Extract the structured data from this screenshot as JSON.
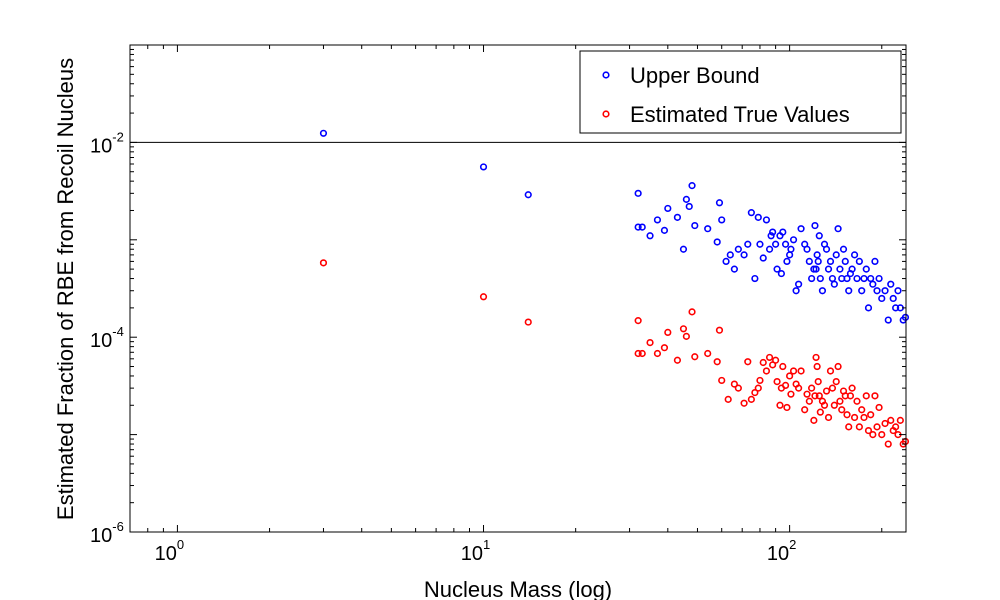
{
  "chart_data": {
    "type": "scatter",
    "x_scale": "log",
    "y_scale": "log",
    "xlim": [
      0.7,
      240
    ],
    "ylim": [
      1e-06,
      0.1
    ],
    "xlabel": "Nucleus Mass (log)",
    "ylabel": "Estimated Fraction of RBE from Recoil Nucleus",
    "x_ticks": [
      {
        "value": 1,
        "base": "10",
        "exp": "0"
      },
      {
        "value": 10,
        "base": "10",
        "exp": "1"
      },
      {
        "value": 100,
        "base": "10",
        "exp": "2"
      }
    ],
    "y_ticks": [
      {
        "value": 1e-06,
        "base": "10",
        "exp": "-6"
      },
      {
        "value": 0.0001,
        "base": "10",
        "exp": "-4"
      },
      {
        "value": 0.01,
        "base": "10",
        "exp": "-2"
      }
    ],
    "reference_line_y": 0.01,
    "legend_position": "top-right",
    "grid": false,
    "series": [
      {
        "name": "Upper Bound",
        "color": "#0000ff",
        "points": [
          [
            3,
            0.0124
          ],
          [
            10,
            0.0056
          ],
          [
            14,
            0.0029
          ],
          [
            32,
            0.003
          ],
          [
            32,
            0.00135
          ],
          [
            33,
            0.00135
          ],
          [
            35,
            0.0011
          ],
          [
            37,
            0.0016
          ],
          [
            39,
            0.00125
          ],
          [
            40,
            0.0021
          ],
          [
            43,
            0.0017
          ],
          [
            45,
            0.0008
          ],
          [
            46,
            0.0026
          ],
          [
            47,
            0.0022
          ],
          [
            48,
            0.0036
          ],
          [
            49,
            0.0014
          ],
          [
            54,
            0.0013
          ],
          [
            58,
            0.00095
          ],
          [
            59,
            0.0024
          ],
          [
            60,
            0.0016
          ],
          [
            62,
            0.0006
          ],
          [
            64,
            0.0007
          ],
          [
            66,
            0.0005
          ],
          [
            68,
            0.0008
          ],
          [
            71,
            0.0007
          ],
          [
            73,
            0.0009
          ],
          [
            75,
            0.0019
          ],
          [
            77,
            0.0004
          ],
          [
            79,
            0.0017
          ],
          [
            80,
            0.0009
          ],
          [
            82,
            0.00065
          ],
          [
            84,
            0.0016
          ],
          [
            86,
            0.0008
          ],
          [
            87,
            0.0011
          ],
          [
            88,
            0.0012
          ],
          [
            90,
            0.0009
          ],
          [
            91,
            0.0005
          ],
          [
            93,
            0.0011
          ],
          [
            94,
            0.00045
          ],
          [
            95,
            0.0012
          ],
          [
            97,
            0.0009
          ],
          [
            98,
            0.0006
          ],
          [
            100,
            0.0007
          ],
          [
            101,
            0.0008
          ],
          [
            103,
            0.001
          ],
          [
            105,
            0.0003
          ],
          [
            107,
            0.00035
          ],
          [
            109,
            0.0013
          ],
          [
            112,
            0.0009
          ],
          [
            114,
            0.0008
          ],
          [
            116,
            0.0006
          ],
          [
            118,
            0.0004
          ],
          [
            120,
            0.0005
          ],
          [
            121,
            0.0014
          ],
          [
            122,
            0.0005
          ],
          [
            123,
            0.0007
          ],
          [
            124,
            0.0006
          ],
          [
            125,
            0.0011
          ],
          [
            126,
            0.0004
          ],
          [
            128,
            0.0003
          ],
          [
            130,
            0.0009
          ],
          [
            132,
            0.0008
          ],
          [
            134,
            0.0005
          ],
          [
            136,
            0.0006
          ],
          [
            138,
            0.0004
          ],
          [
            140,
            0.00035
          ],
          [
            142,
            0.0007
          ],
          [
            144,
            0.0013
          ],
          [
            146,
            0.0005
          ],
          [
            148,
            0.0004
          ],
          [
            150,
            0.0008
          ],
          [
            152,
            0.0006
          ],
          [
            154,
            0.0004
          ],
          [
            156,
            0.0003
          ],
          [
            158,
            0.00045
          ],
          [
            160,
            0.0005
          ],
          [
            163,
            0.0007
          ],
          [
            166,
            0.0004
          ],
          [
            169,
            0.0006
          ],
          [
            172,
            0.0003
          ],
          [
            175,
            0.0004
          ],
          [
            178,
            0.0005
          ],
          [
            181,
            0.0002
          ],
          [
            184,
            0.0004
          ],
          [
            187,
            0.00035
          ],
          [
            190,
            0.0006
          ],
          [
            193,
            0.0003
          ],
          [
            196,
            0.0004
          ],
          [
            200,
            0.00025
          ],
          [
            205,
            0.0003
          ],
          [
            210,
            0.00015
          ],
          [
            214,
            0.00035
          ],
          [
            218,
            0.00025
          ],
          [
            222,
            0.0002
          ],
          [
            226,
            0.0003
          ],
          [
            230,
            0.0002
          ],
          [
            235,
            0.00015
          ],
          [
            239,
            0.00016
          ]
        ]
      },
      {
        "name": "Estimated True Values",
        "color": "#ff0000",
        "points": [
          [
            3,
            0.00058
          ],
          [
            10,
            0.00026
          ],
          [
            14,
            0.000143
          ],
          [
            32,
            0.000148
          ],
          [
            32,
            6.8e-05
          ],
          [
            33,
            6.8e-05
          ],
          [
            35,
            8.8e-05
          ],
          [
            37,
            6.8e-05
          ],
          [
            39,
            7.8e-05
          ],
          [
            40,
            0.000112
          ],
          [
            43,
            5.8e-05
          ],
          [
            45,
            0.000122
          ],
          [
            46,
            0.000102
          ],
          [
            48,
            0.000182
          ],
          [
            49,
            6.3e-05
          ],
          [
            54,
            6.8e-05
          ],
          [
            58,
            5.6e-05
          ],
          [
            59,
            0.000118
          ],
          [
            60,
            3.6e-05
          ],
          [
            63,
            2.3e-05
          ],
          [
            66,
            3.3e-05
          ],
          [
            68,
            3e-05
          ],
          [
            71,
            2.1e-05
          ],
          [
            73,
            5.6e-05
          ],
          [
            75,
            2.3e-05
          ],
          [
            77,
            2.7e-05
          ],
          [
            79,
            3e-05
          ],
          [
            80,
            3.6e-05
          ],
          [
            82,
            5.5e-05
          ],
          [
            84,
            4.5e-05
          ],
          [
            86,
            6.2e-05
          ],
          [
            88,
            5.2e-05
          ],
          [
            90,
            5.8e-05
          ],
          [
            91,
            3.5e-05
          ],
          [
            93,
            2e-05
          ],
          [
            94,
            3e-05
          ],
          [
            95,
            5e-05
          ],
          [
            97,
            3.2e-05
          ],
          [
            98,
            1.9e-05
          ],
          [
            100,
            4e-05
          ],
          [
            101,
            2.6e-05
          ],
          [
            103,
            4.5e-05
          ],
          [
            105,
            3.3e-05
          ],
          [
            107,
            3e-05
          ],
          [
            109,
            4.5e-05
          ],
          [
            112,
            1.8e-05
          ],
          [
            114,
            2.6e-05
          ],
          [
            116,
            2.2e-05
          ],
          [
            118,
            3e-05
          ],
          [
            120,
            1.4e-05
          ],
          [
            121,
            2.5e-05
          ],
          [
            122,
            6.2e-05
          ],
          [
            123,
            5e-05
          ],
          [
            124,
            3.5e-05
          ],
          [
            125,
            2.5e-05
          ],
          [
            126,
            1.7e-05
          ],
          [
            128,
            2.2e-05
          ],
          [
            130,
            2e-05
          ],
          [
            132,
            2.8e-05
          ],
          [
            134,
            1.5e-05
          ],
          [
            136,
            4.5e-05
          ],
          [
            138,
            3e-05
          ],
          [
            140,
            2e-05
          ],
          [
            142,
            3.5e-05
          ],
          [
            144,
            5e-05
          ],
          [
            146,
            2.2e-05
          ],
          [
            148,
            1.8e-05
          ],
          [
            150,
            2.8e-05
          ],
          [
            152,
            2.5e-05
          ],
          [
            154,
            1.6e-05
          ],
          [
            156,
            1.2e-05
          ],
          [
            158,
            2.5e-05
          ],
          [
            160,
            3e-05
          ],
          [
            163,
            1.5e-05
          ],
          [
            166,
            2.2e-05
          ],
          [
            169,
            1.2e-05
          ],
          [
            172,
            1.8e-05
          ],
          [
            175,
            1.5e-05
          ],
          [
            178,
            2.5e-05
          ],
          [
            181,
            1.1e-05
          ],
          [
            184,
            1.6e-05
          ],
          [
            187,
            1e-05
          ],
          [
            190,
            2.5e-05
          ],
          [
            193,
            1.2e-05
          ],
          [
            196,
            1.9e-05
          ],
          [
            200,
            1e-05
          ],
          [
            205,
            1.3e-05
          ],
          [
            210,
            8e-06
          ],
          [
            214,
            1.4e-05
          ],
          [
            218,
            1.1e-05
          ],
          [
            222,
            1.2e-05
          ],
          [
            226,
            1e-05
          ],
          [
            230,
            1.4e-05
          ],
          [
            235,
            8e-06
          ],
          [
            239,
            8.5e-06
          ]
        ]
      }
    ]
  }
}
